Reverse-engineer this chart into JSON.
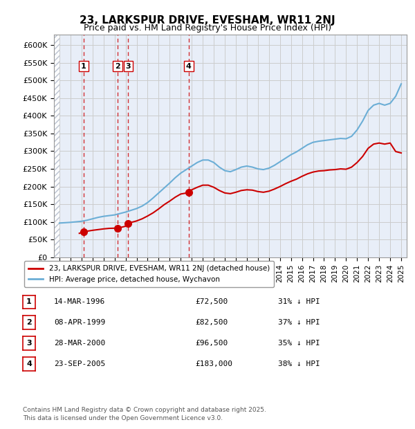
{
  "title": "23, LARKSPUR DRIVE, EVESHAM, WR11 2NJ",
  "subtitle": "Price paid vs. HM Land Registry's House Price Index (HPI)",
  "footnote1": "Contains HM Land Registry data © Crown copyright and database right 2025.",
  "footnote2": "This data is licensed under the Open Government Licence v3.0.",
  "legend_label_red": "23, LARKSPUR DRIVE, EVESHAM, WR11 2NJ (detached house)",
  "legend_label_blue": "HPI: Average price, detached house, Wychavon",
  "sales": [
    {
      "num": 1,
      "date": "14-MAR-1996",
      "price": 72500,
      "pct": "31%",
      "x_year": 1996.2
    },
    {
      "num": 2,
      "date": "08-APR-1999",
      "price": 82500,
      "pct": "37%",
      "x_year": 1999.27
    },
    {
      "num": 3,
      "date": "28-MAR-2000",
      "price": 96500,
      "pct": "35%",
      "x_year": 2000.23
    },
    {
      "num": 4,
      "date": "23-SEP-2005",
      "price": 183000,
      "pct": "38%",
      "x_year": 2005.73
    }
  ],
  "hpi_color": "#6baed6",
  "price_color": "#cc0000",
  "marker_color": "#cc0000",
  "vline_color": "#cc0000",
  "hatch_color": "#c0c8d8",
  "grid_color": "#cccccc",
  "ylim": [
    0,
    630000
  ],
  "xlim_left": 1993.5,
  "xlim_right": 2025.5,
  "hatch_xmax": 1994.0
}
